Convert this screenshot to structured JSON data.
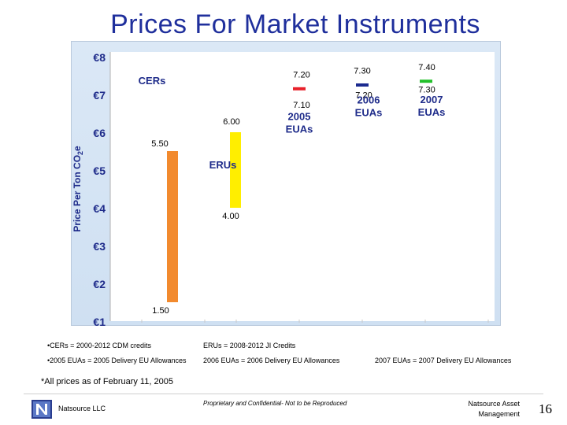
{
  "title": "Prices For Market Instruments",
  "chart_data": {
    "type": "bar",
    "subtype": "floating-range",
    "ylabel": "Price Per Ton CO2e",
    "ylim": [
      1,
      8
    ],
    "yticks": [
      "€1",
      "€2",
      "€3",
      "€4",
      "€5",
      "€6",
      "€7",
      "€8"
    ],
    "grid": false,
    "categories": [
      "CERs",
      "ERUs",
      "2005 EUAs",
      "2006 EUAs",
      "2007 EUAs"
    ],
    "series": [
      {
        "name": "CERs",
        "low": 1.5,
        "high": 5.5,
        "low_label": "1.50",
        "high_label": "5.50",
        "color": "#f28a2e"
      },
      {
        "name": "ERUs",
        "low": 4.0,
        "high": 6.0,
        "low_label": "4.00",
        "high_label": "6.00",
        "color": "#ffee00"
      },
      {
        "name": "2005\nEUAs",
        "low": 7.1,
        "high": 7.2,
        "low_label": "7.10",
        "high_label": "7.20",
        "color": "#e8202a"
      },
      {
        "name": "2006\nEUAs",
        "low": 7.2,
        "high": 7.3,
        "low_label": "7.20",
        "high_label": "7.30",
        "color": "#1b2a8f"
      },
      {
        "name": "2007\nEUAs",
        "low": 7.3,
        "high": 7.4,
        "low_label": "7.30",
        "high_label": "7.40",
        "color": "#22c02a"
      }
    ]
  },
  "footnotes": {
    "cers": "•CERs = 2000-2012 CDM credits",
    "erus": "ERUs = 2008-2012 JI Credits",
    "euas2005": "•2005 EUAs = 2005 Delivery EU Allowances",
    "euas2006": "2006 EUAs = 2006 Delivery EU Allowances",
    "euas2007": "2007 EUAs = 2007 Delivery EU Allowances"
  },
  "as_of": "*All prices as of February 11, 2005",
  "footer": {
    "company": "Natsource LLC",
    "confidential": "Proprietary and Confidential- Not to be Reproduced",
    "asset_line1": "Natsource Asset",
    "asset_line2": "Management",
    "page": "16"
  },
  "colors": {
    "title": "#1f2f9c",
    "plot_bg": "#d6e4f4",
    "axis_text": "#1e2b8a"
  }
}
